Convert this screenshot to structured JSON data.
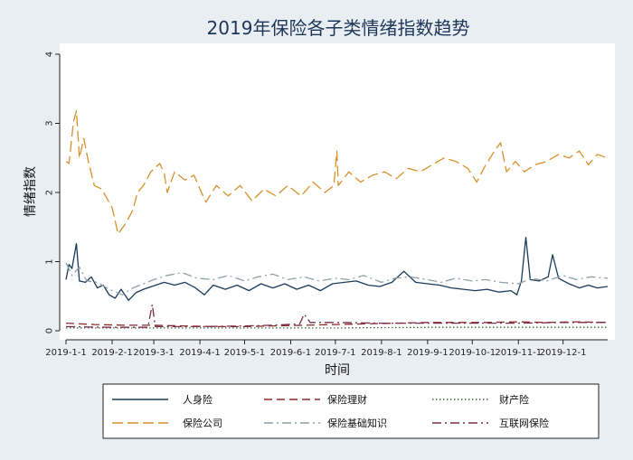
{
  "chart_data": {
    "type": "line",
    "title": "2019年保险各子类情绪指数趋势",
    "xlabel": "时间",
    "ylabel": "情绪指数",
    "ylim": [
      0,
      4
    ],
    "yticks": [
      0,
      1,
      2,
      3,
      4
    ],
    "xlim": [
      "2019-01-01",
      "2019-12-31"
    ],
    "xticks": [
      "2019-1-1",
      "2019-2-1",
      "2019-3-1",
      "2019-4-1",
      "2019-5-1",
      "2019-6-1",
      "2019-7-1",
      "2019-8-1",
      "2019-9-1",
      "2019-10-1",
      "2019-11-1",
      "2019-12-1"
    ],
    "grid": false,
    "legend_position": "bottom",
    "series": [
      {
        "name": "人身险",
        "color": "#1a3a5c",
        "dash": "solid",
        "points": [
          [
            "2019-01-01",
            0.74
          ],
          [
            "2019-01-03",
            0.96
          ],
          [
            "2019-01-05",
            0.9
          ],
          [
            "2019-01-08",
            1.26
          ],
          [
            "2019-01-10",
            0.72
          ],
          [
            "2019-01-14",
            0.7
          ],
          [
            "2019-01-18",
            0.78
          ],
          [
            "2019-01-22",
            0.62
          ],
          [
            "2019-01-26",
            0.66
          ],
          [
            "2019-01-30",
            0.52
          ],
          [
            "2019-02-03",
            0.47
          ],
          [
            "2019-02-07",
            0.6
          ],
          [
            "2019-02-12",
            0.44
          ],
          [
            "2019-02-17",
            0.55
          ],
          [
            "2019-02-22",
            0.6
          ],
          [
            "2019-03-01",
            0.65
          ],
          [
            "2019-03-08",
            0.7
          ],
          [
            "2019-03-15",
            0.66
          ],
          [
            "2019-03-22",
            0.7
          ],
          [
            "2019-03-29",
            0.62
          ],
          [
            "2019-04-04",
            0.52
          ],
          [
            "2019-04-10",
            0.66
          ],
          [
            "2019-04-18",
            0.6
          ],
          [
            "2019-04-26",
            0.66
          ],
          [
            "2019-05-04",
            0.58
          ],
          [
            "2019-05-12",
            0.68
          ],
          [
            "2019-05-20",
            0.62
          ],
          [
            "2019-05-28",
            0.68
          ],
          [
            "2019-06-05",
            0.6
          ],
          [
            "2019-06-13",
            0.66
          ],
          [
            "2019-06-21",
            0.58
          ],
          [
            "2019-06-29",
            0.68
          ],
          [
            "2019-07-07",
            0.7
          ],
          [
            "2019-07-15",
            0.72
          ],
          [
            "2019-07-23",
            0.66
          ],
          [
            "2019-07-31",
            0.64
          ],
          [
            "2019-08-08",
            0.7
          ],
          [
            "2019-08-16",
            0.86
          ],
          [
            "2019-08-24",
            0.7
          ],
          [
            "2019-09-01",
            0.68
          ],
          [
            "2019-09-09",
            0.66
          ],
          [
            "2019-09-17",
            0.62
          ],
          [
            "2019-09-25",
            0.6
          ],
          [
            "2019-10-03",
            0.58
          ],
          [
            "2019-10-11",
            0.6
          ],
          [
            "2019-10-19",
            0.56
          ],
          [
            "2019-10-27",
            0.58
          ],
          [
            "2019-10-31",
            0.52
          ],
          [
            "2019-11-03",
            0.72
          ],
          [
            "2019-11-06",
            1.35
          ],
          [
            "2019-11-09",
            0.74
          ],
          [
            "2019-11-15",
            0.72
          ],
          [
            "2019-11-21",
            0.78
          ],
          [
            "2019-11-24",
            1.1
          ],
          [
            "2019-11-28",
            0.76
          ],
          [
            "2019-12-05",
            0.68
          ],
          [
            "2019-12-12",
            0.62
          ],
          [
            "2019-12-18",
            0.66
          ],
          [
            "2019-12-24",
            0.62
          ],
          [
            "2019-12-31",
            0.64
          ]
        ]
      },
      {
        "name": "保险理财",
        "color": "#8b2a2a",
        "dash": "long-dash",
        "points": [
          [
            "2019-01-01",
            0.11
          ],
          [
            "2019-01-20",
            0.09
          ],
          [
            "2019-02-10",
            0.08
          ],
          [
            "2019-03-01",
            0.08
          ],
          [
            "2019-03-20",
            0.07
          ],
          [
            "2019-04-10",
            0.06
          ],
          [
            "2019-05-01",
            0.06
          ],
          [
            "2019-05-20",
            0.07
          ],
          [
            "2019-06-10",
            0.08
          ],
          [
            "2019-07-01",
            0.09
          ],
          [
            "2019-07-20",
            0.1
          ],
          [
            "2019-08-10",
            0.11
          ],
          [
            "2019-09-01",
            0.12
          ],
          [
            "2019-09-20",
            0.12
          ],
          [
            "2019-10-10",
            0.12
          ],
          [
            "2019-11-01",
            0.13
          ],
          [
            "2019-11-20",
            0.12
          ],
          [
            "2019-12-10",
            0.13
          ],
          [
            "2019-12-31",
            0.12
          ]
        ]
      },
      {
        "name": "财产险",
        "color": "#3d6b35",
        "dash": "dotted",
        "points": [
          [
            "2019-01-01",
            0.04
          ],
          [
            "2019-03-01",
            0.04
          ],
          [
            "2019-05-01",
            0.04
          ],
          [
            "2019-07-01",
            0.04
          ],
          [
            "2019-09-01",
            0.05
          ],
          [
            "2019-11-01",
            0.05
          ],
          [
            "2019-12-31",
            0.05
          ]
        ]
      },
      {
        "name": "保险公司",
        "color": "#d8902a",
        "dash": "dash",
        "points": [
          [
            "2019-01-01",
            2.45
          ],
          [
            "2019-01-03",
            2.42
          ],
          [
            "2019-01-06",
            3.02
          ],
          [
            "2019-01-08",
            3.18
          ],
          [
            "2019-01-10",
            2.5
          ],
          [
            "2019-01-13",
            2.78
          ],
          [
            "2019-01-16",
            2.45
          ],
          [
            "2019-01-20",
            2.1
          ],
          [
            "2019-01-25",
            2.05
          ],
          [
            "2019-02-01",
            1.78
          ],
          [
            "2019-02-05",
            1.4
          ],
          [
            "2019-02-10",
            1.55
          ],
          [
            "2019-02-15",
            1.75
          ],
          [
            "2019-02-18",
            2.0
          ],
          [
            "2019-02-22",
            2.1
          ],
          [
            "2019-02-27",
            2.3
          ],
          [
            "2019-03-05",
            2.42
          ],
          [
            "2019-03-08",
            2.28
          ],
          [
            "2019-03-10",
            2.0
          ],
          [
            "2019-03-15",
            2.3
          ],
          [
            "2019-03-22",
            2.18
          ],
          [
            "2019-03-28",
            2.25
          ],
          [
            "2019-04-02",
            2.0
          ],
          [
            "2019-04-05",
            1.86
          ],
          [
            "2019-04-12",
            2.1
          ],
          [
            "2019-04-20",
            1.95
          ],
          [
            "2019-04-28",
            2.1
          ],
          [
            "2019-05-06",
            1.88
          ],
          [
            "2019-05-14",
            2.05
          ],
          [
            "2019-05-22",
            1.95
          ],
          [
            "2019-05-30",
            2.1
          ],
          [
            "2019-06-08",
            1.95
          ],
          [
            "2019-06-16",
            2.15
          ],
          [
            "2019-06-24",
            2.0
          ],
          [
            "2019-06-30",
            2.1
          ],
          [
            "2019-07-02",
            2.6
          ],
          [
            "2019-07-03",
            2.1
          ],
          [
            "2019-07-10",
            2.3
          ],
          [
            "2019-07-18",
            2.15
          ],
          [
            "2019-07-26",
            2.25
          ],
          [
            "2019-08-03",
            2.3
          ],
          [
            "2019-08-11",
            2.2
          ],
          [
            "2019-08-19",
            2.35
          ],
          [
            "2019-08-27",
            2.3
          ],
          [
            "2019-09-04",
            2.4
          ],
          [
            "2019-09-12",
            2.5
          ],
          [
            "2019-09-20",
            2.45
          ],
          [
            "2019-09-28",
            2.35
          ],
          [
            "2019-10-04",
            2.15
          ],
          [
            "2019-10-10",
            2.4
          ],
          [
            "2019-10-16",
            2.6
          ],
          [
            "2019-10-20",
            2.72
          ],
          [
            "2019-10-24",
            2.3
          ],
          [
            "2019-10-30",
            2.45
          ],
          [
            "2019-11-05",
            2.3
          ],
          [
            "2019-11-12",
            2.4
          ],
          [
            "2019-11-20",
            2.45
          ],
          [
            "2019-11-28",
            2.55
          ],
          [
            "2019-12-05",
            2.5
          ],
          [
            "2019-12-12",
            2.6
          ],
          [
            "2019-12-18",
            2.4
          ],
          [
            "2019-12-24",
            2.55
          ],
          [
            "2019-12-31",
            2.5
          ]
        ]
      },
      {
        "name": "保险基础知识",
        "color": "#8fa0a8",
        "dash": "dash-dot",
        "points": [
          [
            "2019-01-01",
            0.98
          ],
          [
            "2019-01-05",
            0.8
          ],
          [
            "2019-01-10",
            0.92
          ],
          [
            "2019-01-15",
            0.72
          ],
          [
            "2019-01-22",
            0.7
          ],
          [
            "2019-01-30",
            0.6
          ],
          [
            "2019-02-08",
            0.52
          ],
          [
            "2019-02-15",
            0.62
          ],
          [
            "2019-02-22",
            0.68
          ],
          [
            "2019-03-01",
            0.74
          ],
          [
            "2019-03-10",
            0.8
          ],
          [
            "2019-03-20",
            0.84
          ],
          [
            "2019-03-30",
            0.76
          ],
          [
            "2019-04-10",
            0.74
          ],
          [
            "2019-04-20",
            0.8
          ],
          [
            "2019-05-01",
            0.72
          ],
          [
            "2019-05-10",
            0.78
          ],
          [
            "2019-05-20",
            0.82
          ],
          [
            "2019-05-30",
            0.74
          ],
          [
            "2019-06-10",
            0.78
          ],
          [
            "2019-06-20",
            0.72
          ],
          [
            "2019-07-01",
            0.76
          ],
          [
            "2019-07-10",
            0.74
          ],
          [
            "2019-07-20",
            0.8
          ],
          [
            "2019-08-01",
            0.7
          ],
          [
            "2019-08-10",
            0.76
          ],
          [
            "2019-08-20",
            0.78
          ],
          [
            "2019-09-01",
            0.74
          ],
          [
            "2019-09-10",
            0.7
          ],
          [
            "2019-09-20",
            0.76
          ],
          [
            "2019-10-01",
            0.72
          ],
          [
            "2019-10-10",
            0.74
          ],
          [
            "2019-10-20",
            0.7
          ],
          [
            "2019-11-01",
            0.68
          ],
          [
            "2019-11-10",
            0.76
          ],
          [
            "2019-11-20",
            0.72
          ],
          [
            "2019-12-01",
            0.8
          ],
          [
            "2019-12-10",
            0.74
          ],
          [
            "2019-12-20",
            0.78
          ],
          [
            "2019-12-31",
            0.76
          ]
        ]
      },
      {
        "name": "互联网保险",
        "color": "#7a2c4e",
        "dash": "dash-dot",
        "points": [
          [
            "2019-01-01",
            0.06
          ],
          [
            "2019-02-01",
            0.05
          ],
          [
            "2019-02-25",
            0.05
          ],
          [
            "2019-02-28",
            0.38
          ],
          [
            "2019-03-02",
            0.06
          ],
          [
            "2019-04-01",
            0.06
          ],
          [
            "2019-05-01",
            0.07
          ],
          [
            "2019-05-20",
            0.08
          ],
          [
            "2019-06-07",
            0.1
          ],
          [
            "2019-06-10",
            0.24
          ],
          [
            "2019-06-14",
            0.12
          ],
          [
            "2019-07-01",
            0.12
          ],
          [
            "2019-08-01",
            0.11
          ],
          [
            "2019-09-01",
            0.11
          ],
          [
            "2019-10-01",
            0.11
          ],
          [
            "2019-11-01",
            0.11
          ],
          [
            "2019-12-01",
            0.12
          ],
          [
            "2019-12-31",
            0.12
          ]
        ]
      }
    ]
  }
}
